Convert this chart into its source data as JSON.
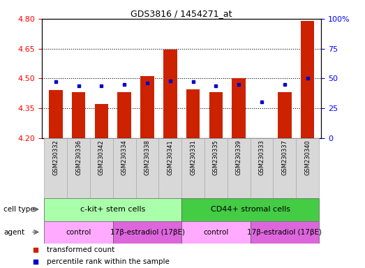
{
  "title": "GDS3816 / 1454271_at",
  "samples": [
    "GSM230332",
    "GSM230336",
    "GSM230342",
    "GSM230334",
    "GSM230338",
    "GSM230341",
    "GSM230331",
    "GSM230335",
    "GSM230339",
    "GSM230333",
    "GSM230337",
    "GSM230340"
  ],
  "red_values": [
    4.44,
    4.43,
    4.37,
    4.43,
    4.51,
    4.645,
    4.445,
    4.43,
    4.5,
    4.2,
    4.43,
    4.79
  ],
  "blue_values": [
    47,
    44,
    44,
    45,
    46,
    48,
    47,
    44,
    45,
    30,
    45,
    50
  ],
  "y_min": 4.2,
  "y_max": 4.8,
  "y_ticks": [
    4.2,
    4.35,
    4.5,
    4.65,
    4.8
  ],
  "y2_ticks": [
    0,
    25,
    50,
    75,
    100
  ],
  "bar_color": "#cc2200",
  "dot_color": "#0000cc",
  "cell_type_groups": [
    {
      "label": "c-kit+ stem cells",
      "start": 0,
      "end": 5,
      "color": "#aaffaa"
    },
    {
      "label": "CD44+ stromal cells",
      "start": 6,
      "end": 11,
      "color": "#44cc44"
    }
  ],
  "agent_groups": [
    {
      "label": "control",
      "start": 0,
      "end": 2,
      "color": "#ffaaff"
    },
    {
      "label": "17β-estradiol (17βE)",
      "start": 3,
      "end": 5,
      "color": "#dd66dd"
    },
    {
      "label": "control",
      "start": 6,
      "end": 8,
      "color": "#ffaaff"
    },
    {
      "label": "17β-estradiol (17βE)",
      "start": 9,
      "end": 11,
      "color": "#dd66dd"
    }
  ],
  "legend_red": "transformed count",
  "legend_blue": "percentile rank within the sample",
  "cell_type_label": "cell type",
  "agent_label": "agent",
  "sample_bg": "#d8d8d8"
}
